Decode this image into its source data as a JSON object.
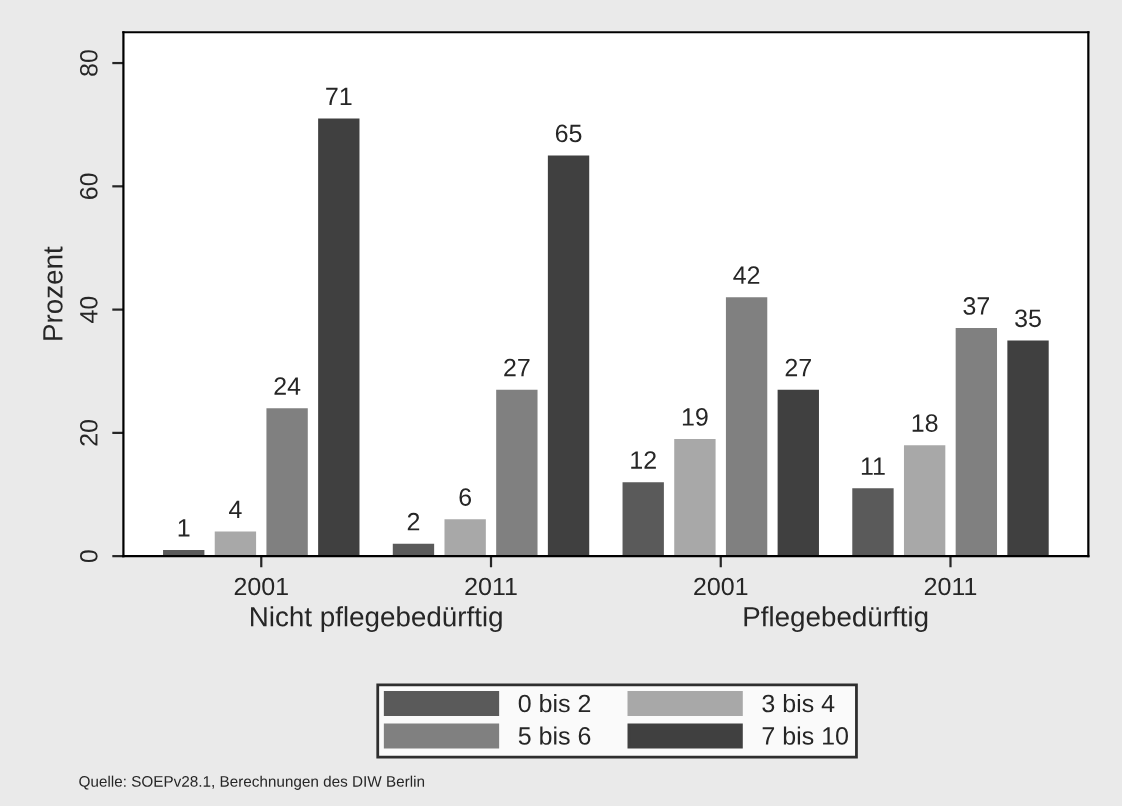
{
  "chart_data": {
    "type": "bar",
    "ylabel": "Prozent",
    "categories": [
      "2001",
      "2011",
      "2001",
      "2011"
    ],
    "series": [
      {
        "name": "0 bis 2",
        "color": "#5a5a5a",
        "values": [
          1,
          2,
          12,
          11
        ]
      },
      {
        "name": "3 bis 4",
        "color": "#a8a8a8",
        "values": [
          4,
          6,
          19,
          18
        ]
      },
      {
        "name": "5 bis 6",
        "color": "#808080",
        "values": [
          24,
          27,
          42,
          37
        ]
      },
      {
        "name": "7 bis 10",
        "color": "#404040",
        "values": [
          71,
          65,
          27,
          35
        ]
      }
    ],
    "ylim": [
      0,
      85
    ],
    "yticks": [
      0,
      20,
      40,
      60,
      80
    ],
    "data_labels": true,
    "grid": false,
    "legend": "bottom",
    "annotations": [
      "Nicht pflegebedürftig",
      "Pflegebedürftig",
      "Quelle: SOEPv28.1, Berechnungen des DIW Berlin"
    ]
  }
}
